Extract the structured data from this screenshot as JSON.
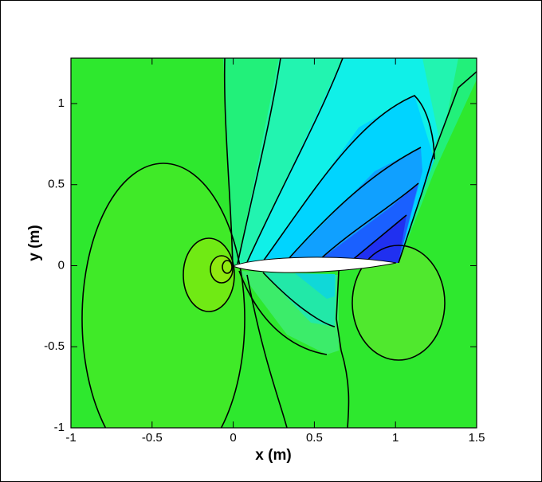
{
  "chart_data": {
    "type": "contour",
    "x_label": "x (m)",
    "y_label": "y (m)",
    "xlim": [
      -1,
      1.5
    ],
    "ylim": [
      -1,
      1.28
    ],
    "xticks": [
      -1,
      -0.5,
      0,
      0.5,
      1,
      1.5
    ],
    "yticks": [
      -1,
      -0.5,
      0,
      0.5,
      1
    ]
  }
}
